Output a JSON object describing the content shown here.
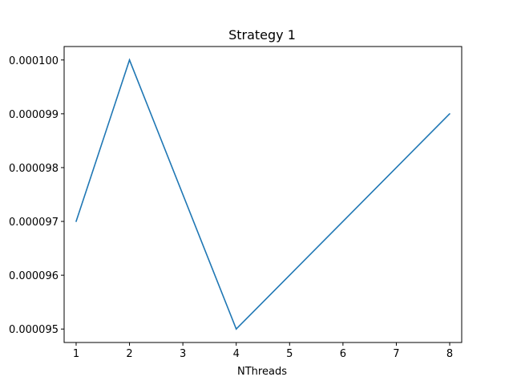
{
  "chart_data": {
    "type": "line",
    "title": "Strategy 1",
    "xlabel": "NThreads",
    "ylabel": "",
    "x": [
      1,
      2,
      4,
      8
    ],
    "series": [
      {
        "values": [
          9.7e-05,
          0.0001,
          9.5e-05,
          9.9e-05
        ],
        "color": "#1f77b4"
      }
    ],
    "xlim": [
      0.775,
      8.225
    ],
    "ylim": [
      9.475e-05,
      0.00010025
    ],
    "xticks": [
      1,
      2,
      3,
      4,
      5,
      6,
      7,
      8
    ],
    "xtick_labels": [
      "1",
      "2",
      "3",
      "4",
      "5",
      "6",
      "7",
      "8"
    ],
    "yticks": [
      9.5e-05,
      9.6e-05,
      9.7e-05,
      9.8e-05,
      9.9e-05,
      0.0001
    ],
    "ytick_labels": [
      "0.000095",
      "0.000096",
      "0.000097",
      "0.000098",
      "0.000099",
      "0.000100"
    ],
    "grid": false,
    "legend": false
  }
}
